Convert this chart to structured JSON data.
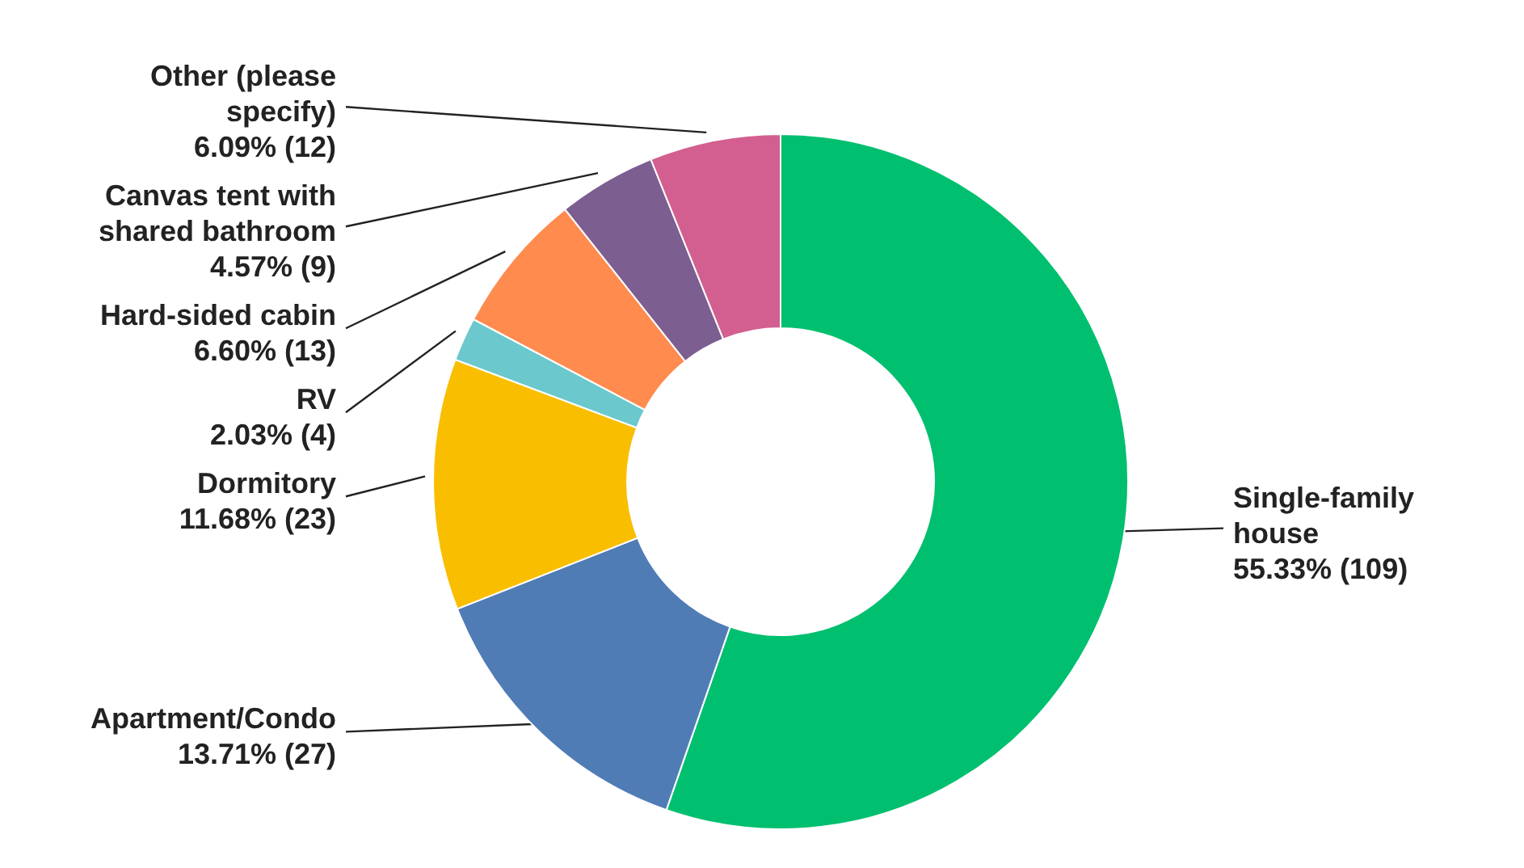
{
  "chart_data": {
    "type": "donut",
    "categories": [
      "Single-family house",
      "Apartment/Condo",
      "Dormitory",
      "RV",
      "Hard-sided cabin",
      "Canvas tent with shared bathroom",
      "Other (please specify)"
    ],
    "values": [
      109,
      27,
      23,
      4,
      13,
      9,
      12
    ],
    "colors": [
      "#00bf6f",
      "#507cb6",
      "#f9be00",
      "#6bc8cd",
      "#ff8b4f",
      "#7d5e90",
      "#d25f90"
    ],
    "value_labels": [
      "55.33% (109)",
      "13.71% (27)",
      "11.68% (23)",
      "2.03% (4)",
      "6.60% (13)",
      "4.57% (9)",
      "6.09% (12)"
    ]
  }
}
